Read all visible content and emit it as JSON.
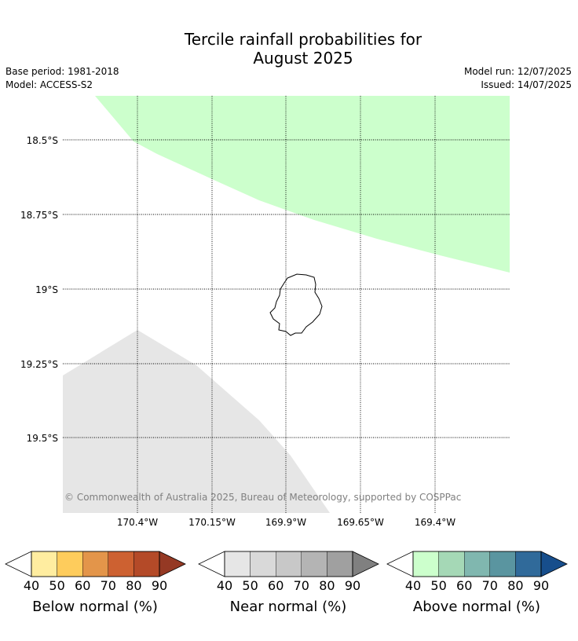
{
  "title_line1": "Tercile rainfall probabilities for",
  "title_line2": "August 2025",
  "info": {
    "base_period": "Base period: 1981-2018",
    "model": "Model: ACCESS-S2",
    "model_run": "Model run: 12/07/2025",
    "issued": "Issued: 14/07/2025"
  },
  "map": {
    "lat_labels": [
      "18.5°S",
      "18.75°S",
      "19°S",
      "19.25°S",
      "19.5°S"
    ],
    "lon_labels": [
      "170.4°W",
      "170.15°W",
      "169.9°W",
      "169.65°W",
      "169.4°W"
    ],
    "copyright": "© Commonwealth of Australia 2025, Bureau of Meteorology, supported by COSPPac",
    "regions": [
      {
        "category": "Above normal",
        "range": "40-50",
        "color": "#ccffcc"
      },
      {
        "category": "Near normal",
        "range": "40-50",
        "color": "#e6e6e6"
      }
    ]
  },
  "colorbars": [
    {
      "label": "Below normal (%)",
      "ticks": [
        "40",
        "50",
        "60",
        "70",
        "80",
        "90"
      ],
      "low_color": "#ffffff",
      "colors": [
        "#ffeda0",
        "#fecc5c",
        "#e3954a",
        "#cd6131",
        "#b44a28"
      ],
      "high_color": "#953924"
    },
    {
      "label": "Near normal (%)",
      "ticks": [
        "40",
        "50",
        "60",
        "70",
        "80",
        "90"
      ],
      "low_color": "#ffffff",
      "colors": [
        "#e6e6e6",
        "#d9d9d9",
        "#c8c8c8",
        "#b4b4b4",
        "#a0a0a0"
      ],
      "high_color": "#808080"
    },
    {
      "label": "Above normal (%)",
      "ticks": [
        "40",
        "50",
        "60",
        "70",
        "80",
        "90"
      ],
      "low_color": "#ffffff",
      "colors": [
        "#ccffcc",
        "#a5d8b6",
        "#80b7af",
        "#5a95a0",
        "#306a9a"
      ],
      "high_color": "#174e8c"
    }
  ]
}
